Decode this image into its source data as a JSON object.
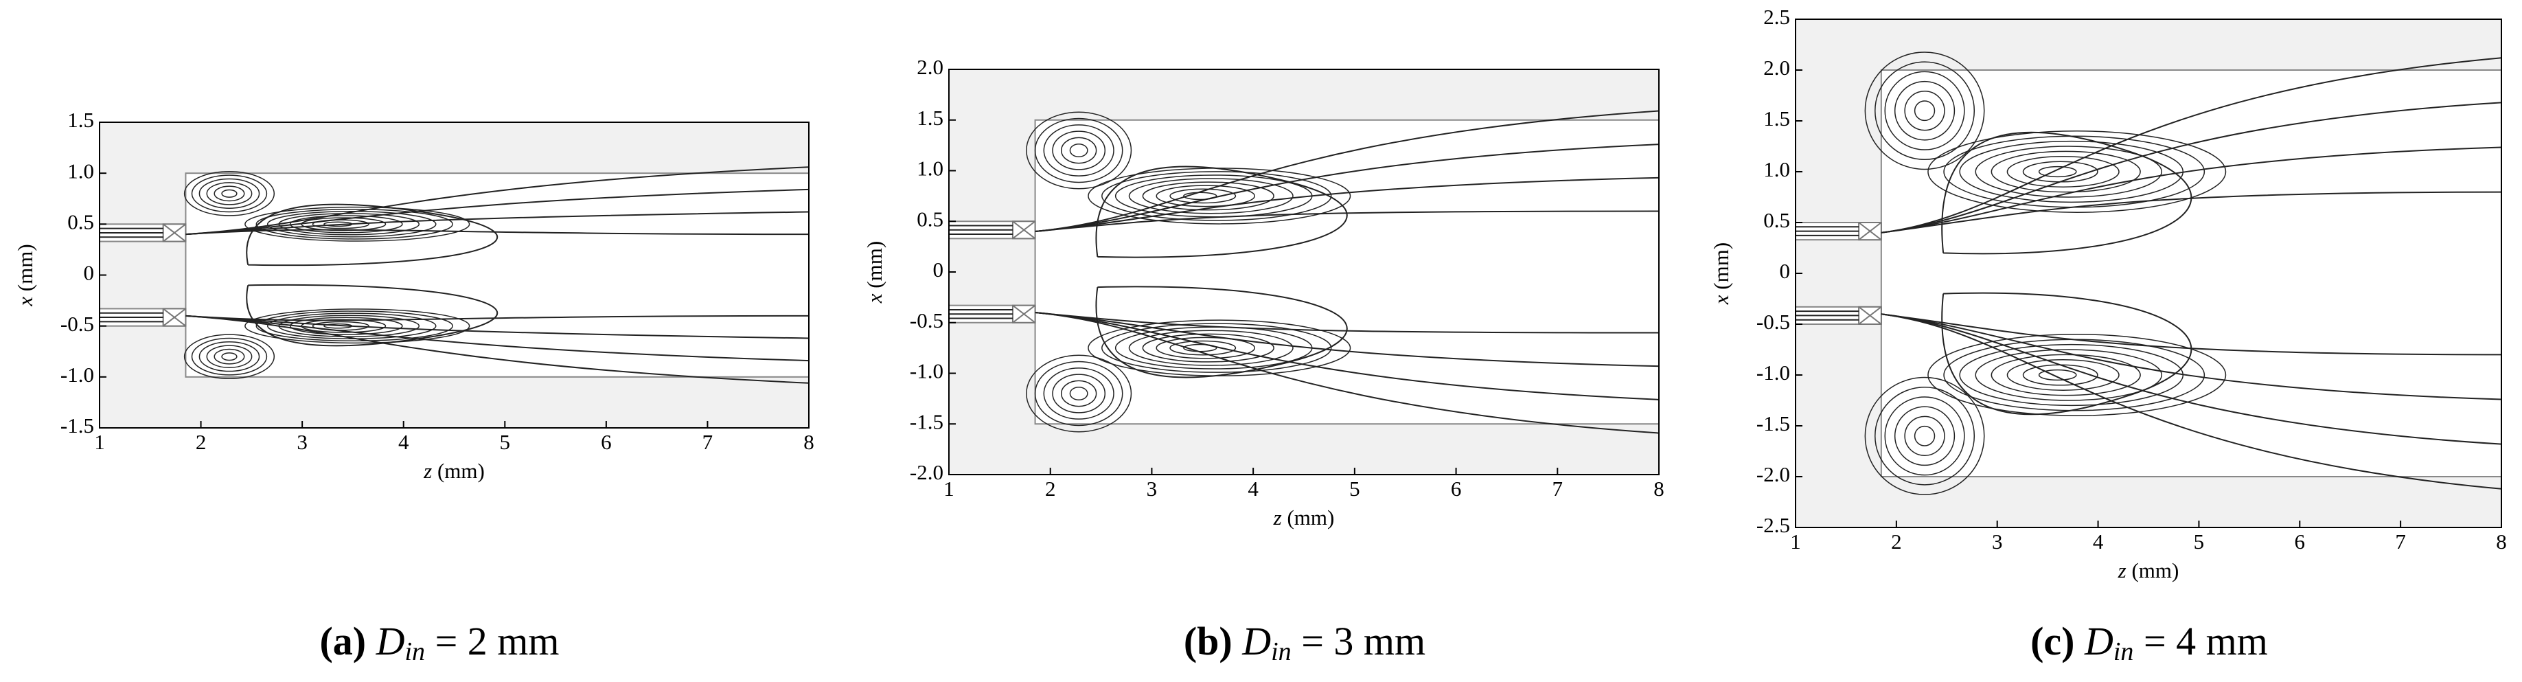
{
  "chart_data": [
    {
      "type": "streamline",
      "caption": {
        "label": "(a)",
        "symbol": "D",
        "subscript": "in",
        "text": "= 2 mm"
      },
      "xlabel": {
        "symbol": "z",
        "unit": "(mm)"
      },
      "ylabel": {
        "symbol": "x",
        "unit": "(mm)"
      },
      "xlim": [
        1,
        8
      ],
      "xticks": [
        1,
        2,
        3,
        4,
        5,
        6,
        7,
        8
      ],
      "ylim": [
        -1.5,
        1.5
      ],
      "yticks": [
        -1.5,
        {
          "value": -1,
          "label": "-1.0"
        },
        -0.5,
        0,
        0.5,
        {
          "value": 1,
          "label": "1.0"
        },
        1.5
      ],
      "chamber_z_start": 1.85,
      "chamber_x": [
        -1,
        1
      ],
      "inlet_x": [
        0.33,
        0.5
      ]
    },
    {
      "type": "streamline",
      "caption": {
        "label": "(b)",
        "symbol": "D",
        "subscript": "in",
        "text": "= 3 mm"
      },
      "xlabel": {
        "symbol": "z",
        "unit": "(mm)"
      },
      "ylabel": {
        "symbol": "x",
        "unit": "(mm)"
      },
      "xlim": [
        1,
        8
      ],
      "xticks": [
        1,
        2,
        3,
        4,
        5,
        6,
        7,
        8
      ],
      "ylim": [
        -2,
        2
      ],
      "yticks": [
        {
          "value": -2,
          "label": "-2.0"
        },
        -1.5,
        {
          "value": -1,
          "label": "-1.0"
        },
        -0.5,
        0,
        0.5,
        {
          "value": 1,
          "label": "1.0"
        },
        1.5,
        {
          "value": 2,
          "label": "2.0"
        }
      ],
      "chamber_z_start": 1.85,
      "chamber_x": [
        -1.5,
        1.5
      ],
      "inlet_x": [
        0.33,
        0.5
      ]
    },
    {
      "type": "streamline",
      "caption": {
        "label": "(c)",
        "symbol": "D",
        "subscript": "in",
        "text": "= 4 mm"
      },
      "xlabel": {
        "symbol": "z",
        "unit": "(mm)"
      },
      "ylabel": {
        "symbol": "x",
        "unit": "(mm)"
      },
      "xlim": [
        1,
        8
      ],
      "xticks": [
        1,
        2,
        3,
        4,
        5,
        6,
        7,
        8
      ],
      "ylim": [
        -2.5,
        2.5
      ],
      "yticks": [
        -2.5,
        {
          "value": -2,
          "label": "-2.0"
        },
        -1.5,
        {
          "value": -1,
          "label": "-1.0"
        },
        -0.5,
        0,
        0.5,
        {
          "value": 1,
          "label": "1.0"
        },
        1.5,
        {
          "value": 2,
          "label": "2.0"
        },
        2.5
      ],
      "chamber_z_start": 1.85,
      "chamber_x": [
        -2,
        2
      ],
      "inlet_x": [
        0.33,
        0.5
      ]
    }
  ]
}
